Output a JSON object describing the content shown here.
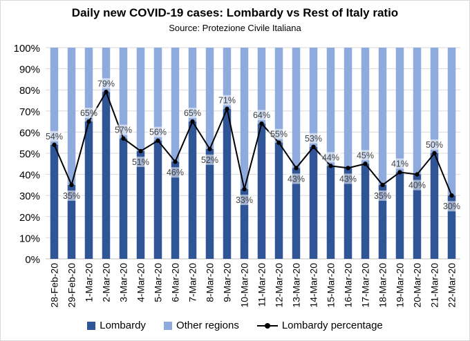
{
  "chart_data": {
    "type": "bar",
    "stacked": true,
    "title": "Daily new COVID-19 cases: Lombardy vs Rest of Italy ratio",
    "subtitle": "Source: Protezione Civile Italiana",
    "categories": [
      "28-Feb-20",
      "29-Feb-20",
      "1-Mar-20",
      "2-Mar-20",
      "3-Mar-20",
      "4-Mar-20",
      "5-Mar-20",
      "6-Mar-20",
      "7-Mar-20",
      "8-Mar-20",
      "9-Mar-20",
      "10-Mar-20",
      "11-Mar-20",
      "12-Mar-20",
      "13-Mar-20",
      "14-Mar-20",
      "15-Mar-20",
      "16-Mar-20",
      "17-Mar-20",
      "18-Mar-20",
      "19-Mar-20",
      "20-Mar-20",
      "21-Mar-20",
      "22-Mar-20"
    ],
    "series": [
      {
        "name": "Lombardy",
        "color": "#2f5597",
        "values": [
          54,
          35,
          65,
          79,
          57,
          51,
          56,
          46,
          65,
          52,
          71,
          33,
          64,
          55,
          43,
          53,
          44,
          43,
          45,
          35,
          41,
          40,
          50,
          30
        ]
      },
      {
        "name": "Other regions",
        "color": "#8faadc",
        "values": [
          46,
          65,
          35,
          21,
          43,
          49,
          44,
          54,
          35,
          48,
          29,
          67,
          36,
          45,
          57,
          47,
          56,
          57,
          55,
          65,
          59,
          60,
          50,
          70
        ]
      },
      {
        "name": "Lombardy percentage",
        "type": "line",
        "color": "#000000",
        "values": [
          54,
          35,
          65,
          79,
          57,
          51,
          56,
          46,
          65,
          52,
          71,
          33,
          64,
          55,
          43,
          53,
          44,
          43,
          45,
          35,
          41,
          40,
          50,
          30
        ]
      }
    ],
    "data_labels": [
      "54%",
      "35%",
      "65%",
      "79%",
      "57%",
      "51%",
      "56%",
      "46%",
      "65%",
      "52%",
      "71%",
      "33%",
      "64%",
      "55%",
      "43%",
      "53%",
      "44%",
      "43%",
      "45%",
      "35%",
      "41%",
      "40%",
      "50%",
      "30%"
    ],
    "yticks": [
      "0%",
      "10%",
      "20%",
      "30%",
      "40%",
      "50%",
      "60%",
      "70%",
      "80%",
      "90%",
      "100%"
    ],
    "ylim": [
      0,
      100
    ],
    "grid": true,
    "legend_position": "bottom"
  }
}
